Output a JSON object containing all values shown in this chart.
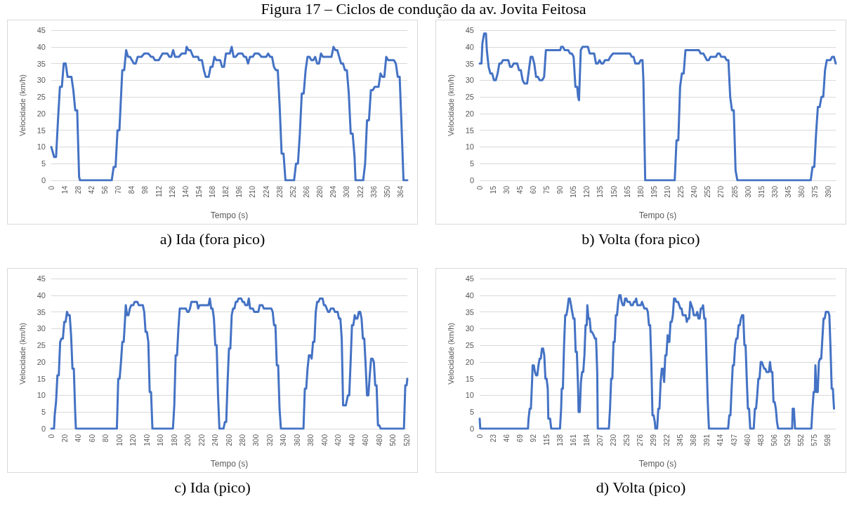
{
  "chart_data": [
    {
      "type": "line",
      "title": "Figura 17 – Ciclos de condução da av. Jovita Feitosa",
      "xlabel": "Tempo (s)",
      "ylabel": "Velocidade (km/h)",
      "annotations": [
        "a) Ida (fora pico)"
      ],
      "grid": "y",
      "marker": "none",
      "line_style": "solid",
      "xlim": [
        0,
        371
      ],
      "xticks": [
        0,
        14,
        28,
        42,
        56,
        70,
        84,
        98,
        112,
        126,
        140,
        154,
        168,
        182,
        196,
        210,
        224,
        238,
        252,
        266,
        280,
        294,
        308,
        322,
        336,
        350,
        364
      ],
      "ylim": [
        0,
        45
      ],
      "yticks": [
        0,
        5,
        10,
        15,
        20,
        25,
        30,
        35,
        40,
        45
      ],
      "series": [
        {
          "color": "#4472c4",
          "x": [
            0,
            3,
            5,
            7,
            9,
            11,
            13,
            15,
            17,
            21,
            23,
            25,
            27,
            29,
            30,
            63,
            65,
            67,
            69,
            71,
            74,
            76,
            78,
            80,
            82,
            86,
            88,
            90,
            94,
            97,
            101,
            104,
            106,
            108,
            112,
            116,
            121,
            123,
            125,
            127,
            129,
            133,
            136,
            140,
            141,
            143,
            145,
            148,
            153,
            154,
            157,
            159,
            161,
            164,
            166,
            168,
            170,
            172,
            176,
            178,
            180,
            182,
            186,
            188,
            190,
            192,
            195,
            199,
            201,
            203,
            205,
            207,
            210,
            212,
            216,
            219,
            224,
            226,
            228,
            230,
            232,
            234,
            236,
            238,
            240,
            242,
            244,
            253,
            255,
            257,
            259,
            261,
            263,
            265,
            267,
            269,
            271,
            273,
            275,
            277,
            279,
            281,
            283,
            292,
            294,
            296,
            298,
            300,
            302,
            304,
            306,
            308,
            310,
            312,
            314,
            316,
            317,
            325,
            327,
            329,
            331,
            333,
            335,
            337,
            341,
            343,
            345,
            347,
            349,
            351,
            357,
            359,
            361,
            363,
            365,
            367,
            371
          ],
          "values": [
            10,
            7,
            7,
            18,
            28,
            28,
            35,
            35,
            31,
            31,
            27,
            21,
            21,
            1,
            0,
            0,
            4,
            4,
            15,
            15,
            33,
            33,
            39,
            37,
            37,
            35,
            35,
            37,
            37,
            38,
            38,
            37,
            37,
            36,
            36,
            38,
            38,
            37,
            37,
            39,
            37,
            37,
            38,
            38,
            40,
            39,
            39,
            37,
            37,
            36,
            36,
            33,
            31,
            31,
            34,
            34,
            37,
            36,
            36,
            34,
            34,
            38,
            38,
            40,
            37,
            37,
            38,
            38,
            37,
            37,
            35,
            37,
            37,
            38,
            38,
            37,
            37,
            38,
            37,
            37,
            34,
            33,
            33,
            22,
            8,
            8,
            0,
            0,
            5,
            5,
            14,
            26,
            26,
            33,
            37,
            37,
            36,
            36,
            37,
            35,
            35,
            38,
            37,
            37,
            40,
            39,
            39,
            37,
            35,
            35,
            33,
            33,
            26,
            14,
            14,
            7,
            0,
            0,
            5,
            18,
            18,
            27,
            27,
            28,
            28,
            32,
            31,
            31,
            37,
            36,
            36,
            35,
            31,
            31,
            16,
            0,
            0
          ]
        }
      ]
    },
    {
      "type": "line",
      "xlabel": "Tempo (s)",
      "ylabel": "Velocidade (km/h)",
      "annotations": [
        "b) Volta (fora pico)"
      ],
      "grid": "y",
      "marker": "none",
      "line_style": "solid",
      "xlim": [
        0,
        398
      ],
      "xticks": [
        0,
        15,
        30,
        45,
        60,
        75,
        90,
        105,
        120,
        135,
        150,
        165,
        180,
        195,
        210,
        225,
        240,
        255,
        270,
        285,
        300,
        315,
        330,
        345,
        360,
        375,
        390
      ],
      "ylim": [
        0,
        45
      ],
      "yticks": [
        0,
        5,
        10,
        15,
        20,
        25,
        30,
        35,
        40,
        45
      ],
      "series": [
        {
          "color": "#4472c4",
          "x": [
            0,
            2,
            3,
            5,
            7,
            8,
            10,
            12,
            14,
            16,
            18,
            20,
            22,
            24,
            26,
            32,
            34,
            36,
            38,
            42,
            44,
            46,
            48,
            50,
            53,
            55,
            57,
            59,
            61,
            63,
            65,
            67,
            70,
            72,
            74,
            90,
            91,
            93,
            95,
            99,
            101,
            103,
            105,
            107,
            109,
            110,
            111,
            113,
            115,
            121,
            123,
            128,
            130,
            132,
            134,
            136,
            138,
            140,
            144,
            146,
            149,
            168,
            170,
            172,
            174,
            178,
            180,
            182,
            183,
            185,
            218,
            220,
            222,
            224,
            226,
            228,
            230,
            245,
            247,
            250,
            252,
            254,
            256,
            258,
            264,
            266,
            268,
            270,
            274,
            276,
            278,
            280,
            282,
            284,
            286,
            288,
            370,
            372,
            374,
            376,
            378,
            380,
            382,
            384,
            386,
            388,
            392,
            394,
            396,
            398
          ],
          "values": [
            35,
            35,
            41,
            44,
            44,
            39,
            34,
            32,
            32,
            30,
            30,
            32,
            35,
            35,
            36,
            36,
            34,
            34,
            35,
            35,
            33,
            33,
            30,
            29,
            29,
            33,
            37,
            37,
            35,
            31,
            31,
            30,
            30,
            31,
            39,
            39,
            40,
            40,
            39,
            39,
            38,
            38,
            37,
            28,
            28,
            25,
            24,
            39,
            40,
            40,
            38,
            38,
            35,
            35,
            36,
            35,
            35,
            36,
            36,
            37,
            38,
            38,
            37,
            37,
            35,
            35,
            36,
            36,
            30,
            0,
            0,
            12,
            12,
            28,
            32,
            32,
            39,
            39,
            38,
            38,
            37,
            36,
            36,
            37,
            37,
            38,
            38,
            37,
            37,
            36,
            36,
            25,
            21,
            21,
            3,
            0,
            0,
            4,
            4,
            14,
            22,
            22,
            25,
            25,
            33,
            36,
            36,
            37,
            37,
            35
          ]
        }
      ]
    },
    {
      "type": "line",
      "xlabel": "Tempo (s)",
      "ylabel": "Velocidade (km/h)",
      "annotations": [
        "c) Ida (pico)"
      ],
      "grid": "y",
      "marker": "none",
      "line_style": "solid",
      "xlim": [
        0,
        521
      ],
      "xticks": [
        0,
        20,
        40,
        60,
        80,
        100,
        120,
        140,
        160,
        180,
        200,
        220,
        240,
        260,
        280,
        300,
        320,
        340,
        360,
        380,
        400,
        420,
        440,
        460,
        480,
        500,
        520
      ],
      "ylim": [
        0,
        45
      ],
      "yticks": [
        0,
        5,
        10,
        15,
        20,
        25,
        30,
        35,
        40,
        45
      ],
      "series": [
        {
          "color": "#4472c4",
          "x": [
            0,
            4,
            5,
            7,
            9,
            11,
            13,
            15,
            17,
            19,
            21,
            23,
            25,
            27,
            29,
            31,
            33,
            35,
            36,
            96,
            98,
            100,
            102,
            104,
            106,
            108,
            109,
            111,
            113,
            115,
            117,
            120,
            122,
            126,
            128,
            134,
            136,
            138,
            140,
            142,
            144,
            146,
            148,
            178,
            180,
            182,
            184,
            186,
            188,
            197,
            199,
            201,
            203,
            205,
            213,
            215,
            217,
            230,
            232,
            234,
            236,
            238,
            240,
            242,
            244,
            246,
            252,
            254,
            256,
            258,
            260,
            262,
            264,
            266,
            268,
            270,
            272,
            274,
            278,
            280,
            282,
            284,
            287,
            289,
            291,
            293,
            295,
            297,
            303,
            305,
            309,
            311,
            322,
            324,
            326,
            328,
            330,
            332,
            334,
            336,
            369,
            371,
            373,
            375,
            377,
            379,
            381,
            383,
            385,
            387,
            389,
            391,
            393,
            397,
            399,
            401,
            403,
            405,
            407,
            409,
            413,
            415,
            419,
            421,
            423,
            425,
            427,
            431,
            434,
            436,
            438,
            440,
            442,
            444,
            446,
            448,
            450,
            452,
            454,
            456,
            458,
            460,
            462,
            464,
            466,
            468,
            470,
            472,
            474,
            476,
            478,
            480,
            482,
            516,
            518,
            520,
            521
          ],
          "values": [
            0,
            0,
            4,
            8,
            16,
            16,
            26,
            27,
            27,
            32,
            32,
            35,
            34,
            34,
            28,
            18,
            18,
            5,
            0,
            0,
            15,
            15,
            20,
            26,
            26,
            33,
            37,
            34,
            34,
            36,
            37,
            37,
            38,
            38,
            37,
            37,
            35,
            29,
            29,
            26,
            11,
            11,
            0,
            0,
            7,
            22,
            22,
            30,
            36,
            36,
            35,
            35,
            36,
            38,
            38,
            36,
            37,
            37,
            39,
            36,
            36,
            33,
            25,
            25,
            10,
            0,
            0,
            2,
            2,
            14,
            24,
            24,
            34,
            36,
            36,
            38,
            38,
            39,
            39,
            38,
            38,
            37,
            37,
            39,
            36,
            36,
            36,
            35,
            35,
            37,
            37,
            36,
            36,
            35,
            31,
            31,
            19,
            19,
            6,
            0,
            0,
            12,
            12,
            18,
            22,
            22,
            21,
            26,
            26,
            35,
            38,
            38,
            39,
            39,
            37,
            37,
            36,
            35,
            35,
            36,
            36,
            35,
            35,
            33,
            33,
            27,
            7,
            7,
            10,
            10,
            20,
            31,
            31,
            34,
            33,
            33,
            35,
            35,
            33,
            27,
            27,
            19,
            10,
            10,
            16,
            21,
            21,
            20,
            13,
            13,
            1,
            1,
            0,
            0,
            13,
            13,
            15
          ]
        }
      ]
    },
    {
      "type": "line",
      "xlabel": "Tempo (s)",
      "ylabel": "Velocidade (km/h)",
      "annotations": [
        "d) Volta (pico)"
      ],
      "grid": "y",
      "marker": "none",
      "line_style": "solid",
      "xlim": [
        0,
        612
      ],
      "xticks": [
        0,
        23,
        46,
        69,
        92,
        115,
        138,
        161,
        184,
        207,
        230,
        253,
        276,
        299,
        322,
        345,
        368,
        391,
        414,
        437,
        460,
        483,
        506,
        529,
        552,
        575,
        598
      ],
      "ylim": [
        0,
        45
      ],
      "yticks": [
        0,
        5,
        10,
        15,
        20,
        25,
        30,
        35,
        40,
        45
      ],
      "series": [
        {
          "color": "#4472c4",
          "x": [
            0,
            1,
            83,
            84,
            86,
            88,
            90,
            91,
            93,
            95,
            97,
            99,
            101,
            103,
            105,
            107,
            109,
            111,
            113,
            115,
            117,
            118,
            121,
            123,
            138,
            140,
            141,
            143,
            145,
            147,
            149,
            151,
            153,
            155,
            157,
            159,
            161,
            163,
            165,
            167,
            169,
            170,
            172,
            174,
            176,
            178,
            180,
            182,
            184,
            185,
            187,
            189,
            191,
            193,
            196,
            198,
            200,
            202,
            203,
            222,
            224,
            226,
            228,
            230,
            232,
            234,
            236,
            238,
            240,
            242,
            244,
            246,
            248,
            250,
            252,
            254,
            258,
            260,
            263,
            265,
            267,
            269,
            271,
            277,
            279,
            281,
            283,
            287,
            289,
            291,
            293,
            295,
            297,
            299,
            301,
            302,
            305,
            307,
            309,
            311,
            313,
            315,
            317,
            319,
            321,
            323,
            324,
            326,
            328,
            330,
            332,
            334,
            336,
            338,
            341,
            343,
            345,
            347,
            349,
            354,
            356,
            358,
            360,
            362,
            364,
            366,
            368,
            372,
            374,
            376,
            378,
            380,
            382,
            384,
            386,
            388,
            390,
            392,
            394,
            427,
            429,
            431,
            433,
            435,
            437,
            439,
            441,
            443,
            445,
            447,
            449,
            451,
            453,
            455,
            457,
            459,
            461,
            463,
            465,
            471,
            473,
            475,
            477,
            479,
            481,
            483,
            485,
            487,
            489,
            491,
            493,
            497,
            499,
            501,
            503,
            505,
            507,
            509,
            511,
            513,
            537,
            538,
            540,
            542,
            570,
            572,
            574,
            576,
            577,
            579,
            581,
            583,
            585,
            587,
            589,
            591,
            593,
            595,
            599,
            601,
            603,
            605,
            607,
            609
          ],
          "values": [
            3,
            0,
            0,
            3,
            6,
            6,
            14,
            19,
            19,
            17,
            16,
            16,
            19,
            21,
            21,
            24,
            24,
            22,
            15,
            15,
            12,
            3,
            3,
            0,
            0,
            6,
            12,
            12,
            25,
            34,
            34,
            36,
            39,
            39,
            37,
            35,
            33,
            33,
            23,
            23,
            13,
            5,
            5,
            14,
            17,
            17,
            22,
            31,
            31,
            37,
            33,
            33,
            29,
            29,
            28,
            27,
            27,
            17,
            0,
            0,
            6,
            15,
            15,
            26,
            26,
            34,
            34,
            38,
            40,
            40,
            38,
            37,
            37,
            39,
            39,
            38,
            38,
            37,
            37,
            38,
            38,
            39,
            37,
            37,
            38,
            37,
            36,
            36,
            35,
            31,
            31,
            20,
            4,
            4,
            2,
            0,
            0,
            6,
            6,
            14,
            18,
            18,
            14,
            22,
            22,
            28,
            26,
            26,
            32,
            32,
            34,
            39,
            39,
            38,
            38,
            37,
            36,
            36,
            34,
            34,
            32,
            33,
            33,
            38,
            37,
            36,
            34,
            34,
            35,
            33,
            33,
            36,
            36,
            37,
            33,
            33,
            20,
            8,
            0,
            0,
            4,
            4,
            12,
            19,
            19,
            25,
            27,
            27,
            31,
            31,
            33,
            34,
            34,
            25,
            25,
            15,
            6,
            6,
            0,
            0,
            6,
            6,
            10,
            15,
            15,
            20,
            20,
            19,
            18,
            18,
            17,
            17,
            20,
            17,
            17,
            8,
            8,
            6,
            2,
            0,
            0,
            6,
            6,
            0,
            0,
            6,
            11,
            11,
            19,
            11,
            11,
            20,
            21,
            21,
            27,
            33,
            33,
            35,
            35,
            34,
            24,
            12,
            12,
            6
          ]
        }
      ]
    }
  ]
}
